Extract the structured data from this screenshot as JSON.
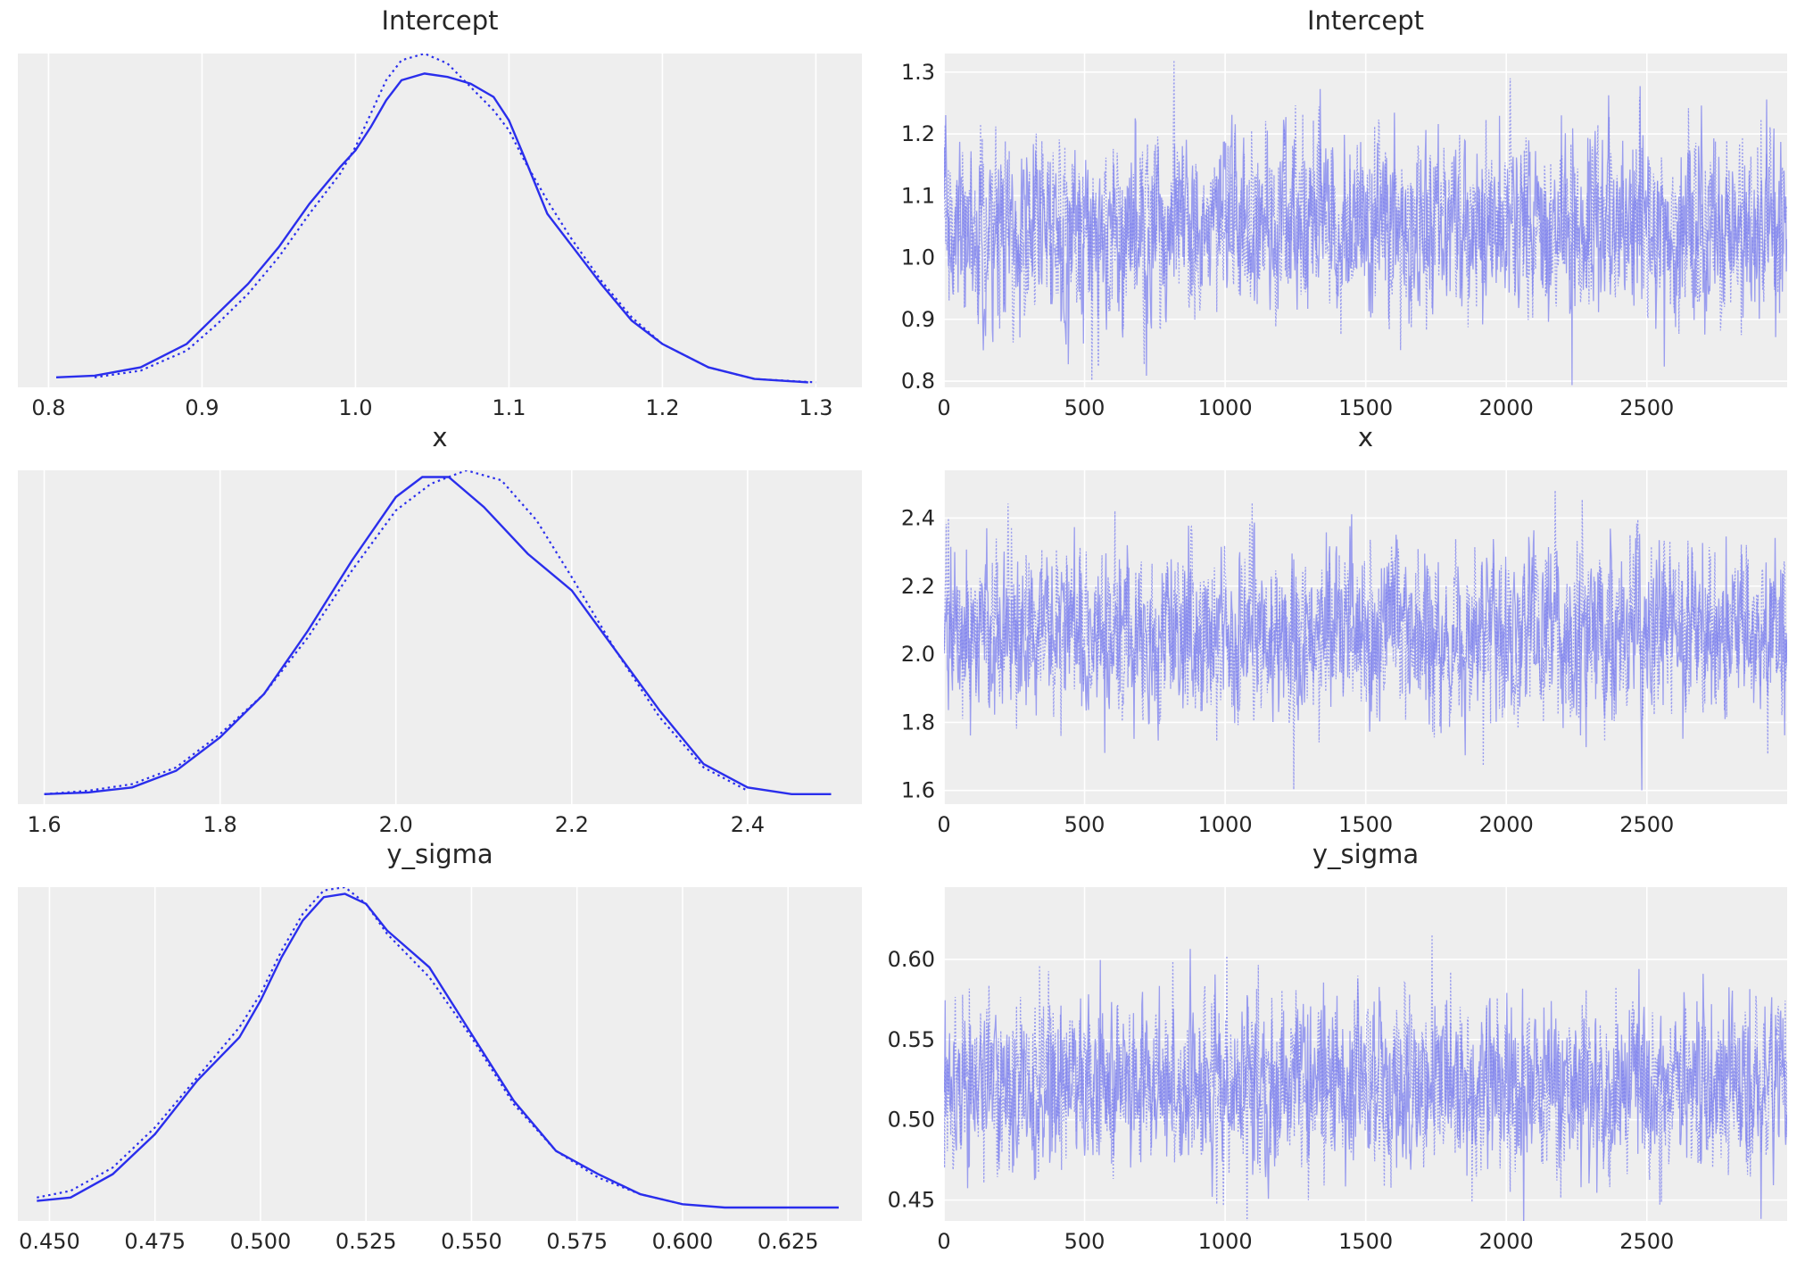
{
  "chart_data": [
    {
      "panel": "kde",
      "type": "line",
      "title": "Intercept",
      "xlim": [
        0.78,
        1.33
      ],
      "ylim": [
        0,
        1
      ],
      "xticks": [
        0.8,
        0.9,
        1.0,
        1.1,
        1.2,
        1.3
      ],
      "xtick_labels": [
        "0.8",
        "0.9",
        "1.0",
        "1.1",
        "1.2",
        "1.3"
      ],
      "grid": true,
      "series": [
        {
          "line": "solid",
          "x": [
            0.805,
            0.83,
            0.86,
            0.89,
            0.91,
            0.93,
            0.95,
            0.97,
            0.99,
            1.0,
            1.01,
            1.02,
            1.03,
            1.045,
            1.06,
            1.075,
            1.09,
            1.1,
            1.11,
            1.125,
            1.14,
            1.16,
            1.18,
            1.2,
            1.23,
            1.26,
            1.295
          ],
          "y": [
            0.03,
            0.035,
            0.06,
            0.13,
            0.22,
            0.31,
            0.42,
            0.55,
            0.66,
            0.71,
            0.78,
            0.86,
            0.92,
            0.94,
            0.93,
            0.91,
            0.87,
            0.8,
            0.69,
            0.52,
            0.43,
            0.31,
            0.2,
            0.13,
            0.06,
            0.025,
            0.015
          ]
        },
        {
          "line": "dotted",
          "x": [
            0.83,
            0.86,
            0.89,
            0.91,
            0.93,
            0.95,
            0.97,
            0.99,
            1.0,
            1.01,
            1.02,
            1.03,
            1.045,
            1.06,
            1.075,
            1.09,
            1.1,
            1.11,
            1.125,
            1.14,
            1.16,
            1.18,
            1.2,
            1.23,
            1.26,
            1.3
          ],
          "y": [
            0.03,
            0.05,
            0.11,
            0.19,
            0.28,
            0.39,
            0.52,
            0.64,
            0.72,
            0.82,
            0.92,
            0.98,
            1.0,
            0.97,
            0.9,
            0.83,
            0.77,
            0.68,
            0.56,
            0.45,
            0.32,
            0.21,
            0.13,
            0.06,
            0.025,
            0.015
          ]
        }
      ]
    },
    {
      "panel": "trace",
      "type": "line",
      "title": "Intercept",
      "xlim": [
        0,
        2999
      ],
      "ylim": [
        0.79,
        1.33
      ],
      "xticks": [
        0,
        500,
        1000,
        1500,
        2000,
        2500
      ],
      "xtick_labels": [
        "0",
        "500",
        "1000",
        "1500",
        "2000",
        "2500"
      ],
      "yticks": [
        0.8,
        0.9,
        1.0,
        1.1,
        1.2,
        1.3
      ],
      "ytick_labels": [
        "0.8",
        "0.9",
        "1.0",
        "1.1",
        "1.2",
        "1.3"
      ],
      "grid": true,
      "n_draws": 3000,
      "chains": 2,
      "mean": 1.045,
      "sd": 0.07
    },
    {
      "panel": "kde",
      "type": "line",
      "title": "x",
      "xlim": [
        1.57,
        2.53
      ],
      "ylim": [
        0,
        1
      ],
      "xticks": [
        1.6,
        1.8,
        2.0,
        2.2,
        2.4
      ],
      "xtick_labels": [
        "1.6",
        "1.8",
        "2.0",
        "2.2",
        "2.4"
      ],
      "grid": true,
      "series": [
        {
          "line": "solid",
          "x": [
            1.6,
            1.65,
            1.7,
            1.75,
            1.8,
            1.85,
            1.9,
            1.95,
            2.0,
            2.03,
            2.06,
            2.1,
            2.15,
            2.2,
            2.25,
            2.3,
            2.35,
            2.4,
            2.45,
            2.495
          ],
          "y": [
            0.03,
            0.035,
            0.05,
            0.1,
            0.2,
            0.33,
            0.52,
            0.73,
            0.92,
            0.98,
            0.98,
            0.89,
            0.75,
            0.64,
            0.46,
            0.28,
            0.12,
            0.05,
            0.03,
            0.03
          ]
        },
        {
          "line": "dotted",
          "x": [
            1.6,
            1.65,
            1.7,
            1.75,
            1.8,
            1.85,
            1.9,
            1.95,
            2.0,
            2.04,
            2.08,
            2.12,
            2.16,
            2.2,
            2.25,
            2.3,
            2.35,
            2.4
          ],
          "y": [
            0.03,
            0.04,
            0.06,
            0.11,
            0.21,
            0.33,
            0.5,
            0.7,
            0.88,
            0.96,
            1.0,
            0.97,
            0.85,
            0.68,
            0.46,
            0.26,
            0.11,
            0.04
          ]
        }
      ]
    },
    {
      "panel": "trace",
      "type": "line",
      "title": "x",
      "xlim": [
        0,
        2999
      ],
      "ylim": [
        1.56,
        2.54
      ],
      "xticks": [
        0,
        500,
        1000,
        1500,
        2000,
        2500
      ],
      "xtick_labels": [
        "0",
        "500",
        "1000",
        "1500",
        "2000",
        "2500"
      ],
      "yticks": [
        1.6,
        1.8,
        2.0,
        2.2,
        2.4
      ],
      "ytick_labels": [
        "1.6",
        "1.8",
        "2.0",
        "2.2",
        "2.4"
      ],
      "grid": true,
      "n_draws": 3000,
      "chains": 2,
      "mean": 2.06,
      "sd": 0.12
    },
    {
      "panel": "kde",
      "type": "line",
      "title": "y_sigma",
      "xlim": [
        0.4425,
        0.6425
      ],
      "ylim": [
        0,
        1
      ],
      "xticks": [
        0.45,
        0.475,
        0.5,
        0.525,
        0.55,
        0.575,
        0.6,
        0.625
      ],
      "xtick_labels": [
        "0.450",
        "0.475",
        "0.500",
        "0.525",
        "0.550",
        "0.575",
        "0.600",
        "0.625"
      ],
      "grid": true,
      "series": [
        {
          "line": "solid",
          "x": [
            0.447,
            0.455,
            0.465,
            0.475,
            0.485,
            0.495,
            0.5,
            0.505,
            0.51,
            0.515,
            0.52,
            0.525,
            0.53,
            0.54,
            0.55,
            0.56,
            0.57,
            0.58,
            0.59,
            0.6,
            0.61,
            0.625,
            0.637
          ],
          "y": [
            0.06,
            0.07,
            0.14,
            0.26,
            0.42,
            0.55,
            0.66,
            0.79,
            0.9,
            0.97,
            0.98,
            0.95,
            0.87,
            0.76,
            0.56,
            0.36,
            0.21,
            0.14,
            0.08,
            0.05,
            0.04,
            0.04,
            0.04
          ]
        },
        {
          "line": "dotted",
          "x": [
            0.447,
            0.455,
            0.465,
            0.475,
            0.485,
            0.495,
            0.5,
            0.505,
            0.51,
            0.515,
            0.52,
            0.525,
            0.53,
            0.54,
            0.55,
            0.56,
            0.57,
            0.58,
            0.59,
            0.6
          ],
          "y": [
            0.07,
            0.09,
            0.16,
            0.28,
            0.43,
            0.58,
            0.68,
            0.81,
            0.92,
            0.99,
            1.0,
            0.95,
            0.86,
            0.73,
            0.55,
            0.35,
            0.21,
            0.13,
            0.08,
            0.05
          ]
        }
      ]
    },
    {
      "panel": "trace",
      "type": "line",
      "title": "y_sigma",
      "xlim": [
        0,
        2999
      ],
      "ylim": [
        0.437,
        0.645
      ],
      "xticks": [
        0,
        500,
        1000,
        1500,
        2000,
        2500
      ],
      "xtick_labels": [
        "0",
        "500",
        "1000",
        "1500",
        "2000",
        "2500"
      ],
      "yticks": [
        0.45,
        0.5,
        0.55,
        0.6
      ],
      "ytick_labels": [
        "0.45",
        "0.50",
        "0.55",
        "0.60"
      ],
      "grid": true,
      "n_draws": 3000,
      "chains": 2,
      "mean": 0.52,
      "sd": 0.025
    }
  ],
  "colors": {
    "kde_line": "#2a2eec",
    "trace_line": "#7e82ee",
    "plot_background": "#eeeeee",
    "grid": "#ffffff",
    "text": "#262626"
  }
}
